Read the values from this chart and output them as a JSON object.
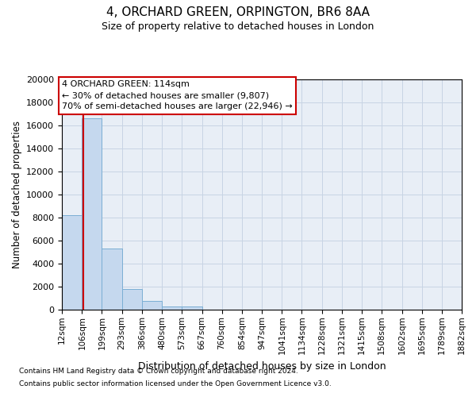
{
  "title": "4, ORCHARD GREEN, ORPINGTON, BR6 8AA",
  "subtitle": "Size of property relative to detached houses in London",
  "xlabel": "Distribution of detached houses by size in London",
  "ylabel": "Number of detached properties",
  "bar_color": "#c5d8ee",
  "bar_edge_color": "#7baed4",
  "grid_color": "#c8d4e4",
  "background_color": "#e8eef6",
  "bins": [
    12,
    106,
    199,
    293,
    386,
    480,
    573,
    667,
    760,
    854,
    947,
    1041,
    1134,
    1228,
    1321,
    1415,
    1508,
    1602,
    1695,
    1789,
    1882
  ],
  "values": [
    8200,
    16600,
    5300,
    1800,
    750,
    300,
    300,
    0,
    0,
    0,
    0,
    0,
    0,
    0,
    0,
    0,
    0,
    0,
    0,
    0
  ],
  "property_size": 114,
  "red_line_color": "#cc0000",
  "annotation_line1": "4 ORCHARD GREEN: 114sqm",
  "annotation_line2": "← 30% of detached houses are smaller (9,807)",
  "annotation_line3": "70% of semi-detached houses are larger (22,946) →",
  "annotation_box_color": "#ffffff",
  "annotation_border_color": "#cc0000",
  "ylim": [
    0,
    20000
  ],
  "yticks": [
    0,
    2000,
    4000,
    6000,
    8000,
    10000,
    12000,
    14000,
    16000,
    18000,
    20000
  ],
  "footnote1": "Contains HM Land Registry data © Crown copyright and database right 2024.",
  "footnote2": "Contains public sector information licensed under the Open Government Licence v3.0."
}
